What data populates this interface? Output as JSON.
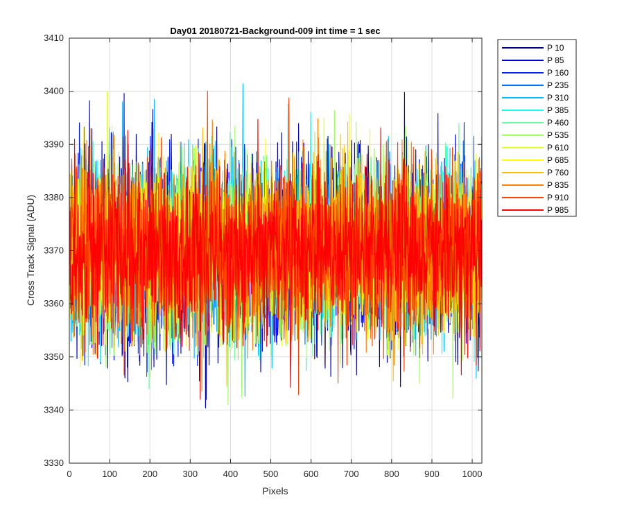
{
  "chart_data": {
    "type": "line",
    "title": "Day01 20180721-Background-009 int time = 1 sec",
    "xlabel": "Pixels",
    "ylabel": "Cross Track Signal (ADU)",
    "xlim": [
      0,
      1024
    ],
    "ylim": [
      3330,
      3410
    ],
    "x_ticks": [
      0,
      100,
      200,
      300,
      400,
      500,
      600,
      700,
      800,
      900,
      1000
    ],
    "y_ticks": [
      3330,
      3340,
      3350,
      3360,
      3370,
      3380,
      3390,
      3400,
      3410
    ],
    "grid": true,
    "legend_position": "outside-right",
    "x_range": [
      1,
      1024
    ],
    "series": [
      {
        "name": "P 10",
        "color": "#00008F",
        "mean": 3370,
        "min": 3338,
        "max": 3401
      },
      {
        "name": "P 85",
        "color": "#0000D8",
        "mean": 3370,
        "min": 3339,
        "max": 3401
      },
      {
        "name": "P 160",
        "color": "#0020FF",
        "mean": 3370,
        "min": 3343,
        "max": 3398
      },
      {
        "name": "P 235",
        "color": "#0070FF",
        "mean": 3370,
        "min": 3344,
        "max": 3400
      },
      {
        "name": "P 310",
        "color": "#00BFFF",
        "mean": 3370,
        "min": 3342,
        "max": 3408
      },
      {
        "name": "P 385",
        "color": "#10FFEF",
        "mean": 3370,
        "min": 3343,
        "max": 3404
      },
      {
        "name": "P 460",
        "color": "#60FF9F",
        "mean": 3370,
        "min": 3344,
        "max": 3410
      },
      {
        "name": "P 535",
        "color": "#9FFF60",
        "mean": 3370,
        "min": 3341,
        "max": 3401
      },
      {
        "name": "P 610",
        "color": "#DFFF20",
        "mean": 3370,
        "min": 3345,
        "max": 3400
      },
      {
        "name": "P 685",
        "color": "#FFFF00",
        "mean": 3370,
        "min": 3346,
        "max": 3400
      },
      {
        "name": "P 760",
        "color": "#FFBF00",
        "mean": 3370,
        "min": 3343,
        "max": 3404
      },
      {
        "name": "P 835",
        "color": "#FF8000",
        "mean": 3370,
        "min": 3342,
        "max": 3400
      },
      {
        "name": "P 910",
        "color": "#FF4000",
        "mean": 3370,
        "min": 3342,
        "max": 3400
      },
      {
        "name": "P 985",
        "color": "#FF0000",
        "mean": 3370,
        "min": 3342,
        "max": 3400
      }
    ]
  }
}
